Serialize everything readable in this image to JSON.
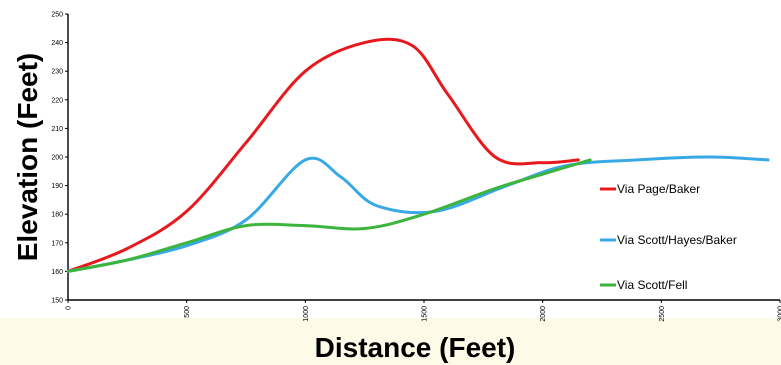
{
  "chart_data": {
    "type": "line",
    "xlabel": "Distance (Feet)",
    "ylabel": "Elevation (Feet)",
    "xlim": [
      0,
      3000
    ],
    "ylim": [
      150,
      250
    ],
    "x_ticks": [
      "0",
      "500",
      "1000",
      "1500",
      "2000",
      "2500",
      "3000"
    ],
    "y_ticks": [
      "150",
      "160",
      "170",
      "180",
      "190",
      "200",
      "210",
      "220",
      "230",
      "240",
      "250"
    ],
    "grid": false,
    "legend_position": "right",
    "series": [
      {
        "name": "Via Page/Baker",
        "color": "#e8191e",
        "points": [
          [
            0,
            160
          ],
          [
            250,
            168
          ],
          [
            500,
            181
          ],
          [
            750,
            205
          ],
          [
            1000,
            230
          ],
          [
            1250,
            240
          ],
          [
            1450,
            239
          ],
          [
            1600,
            222
          ],
          [
            1800,
            200
          ],
          [
            2000,
            198
          ],
          [
            2150,
            199
          ]
        ]
      },
      {
        "name": "Via Scott/Hayes/Baker",
        "color": "#39a9e6",
        "points": [
          [
            0,
            160
          ],
          [
            250,
            164
          ],
          [
            500,
            169
          ],
          [
            750,
            178
          ],
          [
            1000,
            199
          ],
          [
            1150,
            193
          ],
          [
            1300,
            183
          ],
          [
            1550,
            181
          ],
          [
            1850,
            190
          ],
          [
            2100,
            197
          ],
          [
            2400,
            199
          ],
          [
            2700,
            200
          ],
          [
            2950,
            199
          ]
        ]
      },
      {
        "name": "Via Scott/Fell",
        "color": "#3db43d",
        "points": [
          [
            0,
            160
          ],
          [
            250,
            164
          ],
          [
            500,
            170
          ],
          [
            750,
            176
          ],
          [
            1000,
            176
          ],
          [
            1250,
            175
          ],
          [
            1500,
            180
          ],
          [
            1800,
            189
          ],
          [
            2000,
            194
          ],
          [
            2200,
            199
          ]
        ]
      }
    ]
  }
}
